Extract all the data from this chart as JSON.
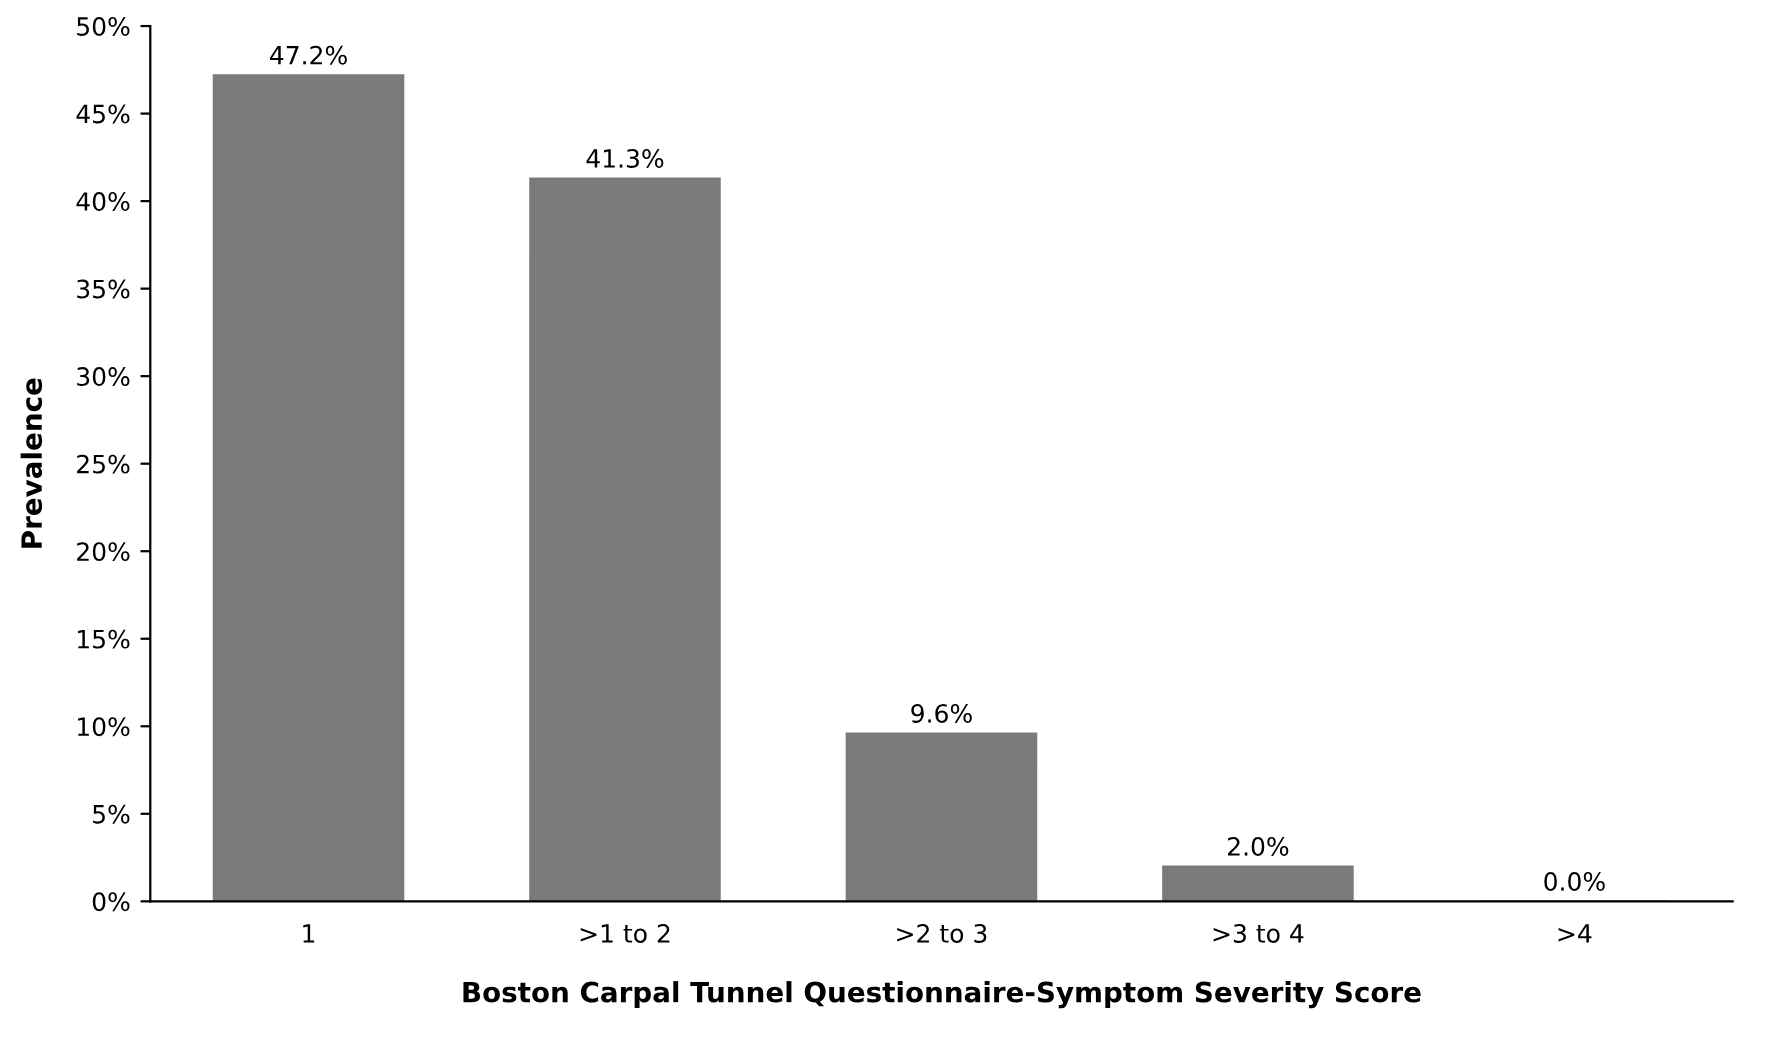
{
  "chart_data": {
    "type": "bar",
    "xlabel": "Boston Carpal Tunnel Questionnaire-Symptom Severity Score",
    "ylabel": "Prevalence",
    "categories": [
      "1",
      ">1 to 2",
      ">2 to 3",
      ">3 to 4",
      ">4"
    ],
    "values": [
      47.2,
      41.3,
      9.6,
      2.0,
      0.0
    ],
    "value_labels": [
      "47.2%",
      "41.3%",
      "9.6%",
      "2.0%",
      "0.0%"
    ],
    "color": "#7a7a7a",
    "ylim": [
      0,
      50
    ],
    "yticks": [
      {
        "value": 0,
        "label": "0%"
      },
      {
        "value": 5,
        "label": "5%"
      },
      {
        "value": 10,
        "label": "10%"
      },
      {
        "value": 15,
        "label": "15%"
      },
      {
        "value": 20,
        "label": "20%"
      },
      {
        "value": 25,
        "label": "25%"
      },
      {
        "value": 30,
        "label": "30%"
      },
      {
        "value": 35,
        "label": "35%"
      },
      {
        "value": 40,
        "label": "40%"
      },
      {
        "value": 45,
        "label": "45%"
      },
      {
        "value": 50,
        "label": "50%"
      }
    ],
    "grid": false,
    "legend": false
  }
}
